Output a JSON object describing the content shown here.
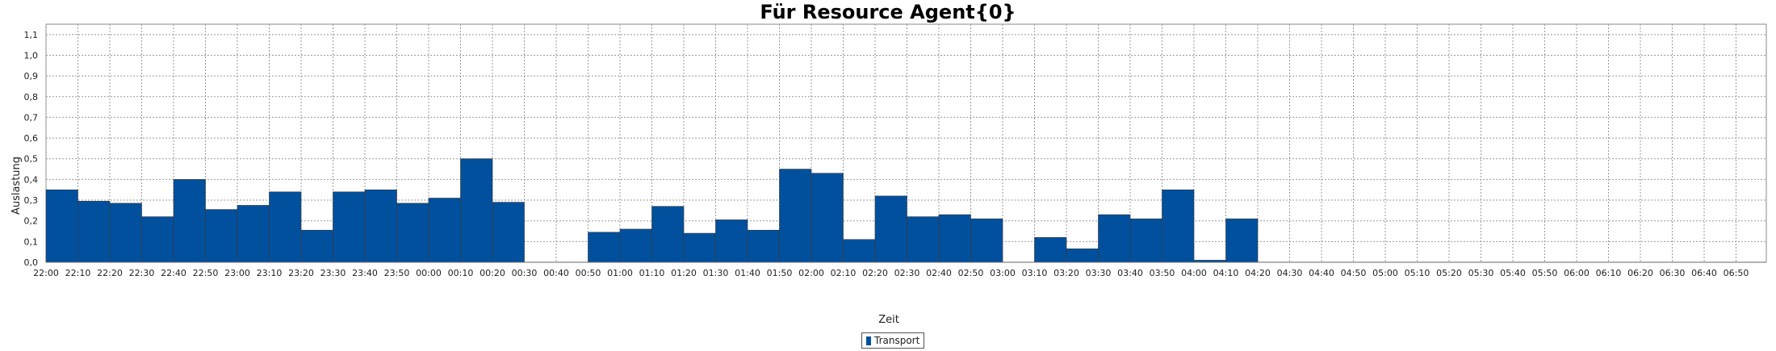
{
  "chart_data": {
    "type": "bar",
    "title": "Für Resource Agent{0}",
    "xlabel": "Zeit",
    "ylabel": "Auslastung",
    "ylim": [
      0,
      1.15
    ],
    "yticks": [
      "0,0",
      "0,1",
      "0,2",
      "0,3",
      "0,4",
      "0,5",
      "0,6",
      "0,7",
      "0,8",
      "0,9",
      "1,0",
      "1,1"
    ],
    "grid": true,
    "legend_position": "bottom-center",
    "bar_color": "#00509e",
    "categories": [
      "22:00",
      "22:10",
      "22:20",
      "22:30",
      "22:40",
      "22:50",
      "23:00",
      "23:10",
      "23:20",
      "23:30",
      "23:40",
      "23:50",
      "00:00",
      "00:10",
      "00:20",
      "00:30",
      "00:40",
      "00:50",
      "01:00",
      "01:10",
      "01:20",
      "01:30",
      "01:40",
      "01:50",
      "02:00",
      "02:10",
      "02:20",
      "02:30",
      "02:40",
      "02:50",
      "03:00",
      "03:10",
      "03:20",
      "03:30",
      "03:40",
      "03:50",
      "04:00",
      "04:10",
      "04:20",
      "04:30",
      "04:40",
      "04:50",
      "05:00",
      "05:10",
      "05:20",
      "05:30",
      "05:40",
      "05:50",
      "06:00",
      "06:10",
      "06:20",
      "06:30",
      "06:40",
      "06:50"
    ],
    "series": [
      {
        "name": "Transport",
        "values": [
          0.35,
          0.295,
          0.285,
          0.22,
          0.4,
          0.255,
          0.275,
          0.34,
          0.155,
          0.34,
          0.35,
          0.285,
          0.31,
          0.5,
          0.29,
          null,
          null,
          0.145,
          0.16,
          0.27,
          0.14,
          0.205,
          0.155,
          0.45,
          0.43,
          0.11,
          0.32,
          0.22,
          0.23,
          0.21,
          null,
          0.12,
          0.065,
          0.23,
          0.21,
          0.35,
          0.01,
          0.21,
          null,
          null,
          null,
          null,
          null,
          null,
          null,
          null,
          null,
          null,
          null,
          null,
          null,
          null,
          null,
          null
        ]
      }
    ]
  }
}
